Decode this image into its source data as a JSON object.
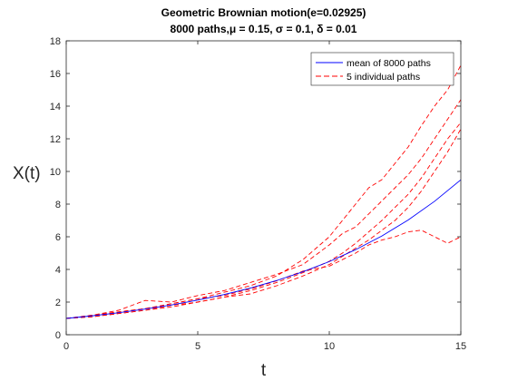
{
  "chart_data": {
    "type": "line",
    "title": [
      "Geometric Brownian motion(e=0.02925)",
      "8000 paths,μ = 0.15, σ = 0.1, δ = 0.01"
    ],
    "xlabel": "t",
    "ylabel": "X(t)",
    "xlim": [
      0,
      15
    ],
    "ylim": [
      0,
      18
    ],
    "xticks": [
      0,
      5,
      10,
      15
    ],
    "yticks": [
      0,
      2,
      4,
      6,
      8,
      10,
      12,
      14,
      16,
      18
    ],
    "grid": false,
    "legend_position": "top-right",
    "legend": [
      {
        "label": "mean of 8000 paths",
        "color": "#0000ff",
        "style": "solid"
      },
      {
        "label": "5 individual paths",
        "color": "#ff0000",
        "style": "dashed"
      }
    ],
    "series": [
      {
        "name": "mean of 8000 paths",
        "color": "#0000ff",
        "style": "solid",
        "x": [
          0,
          1,
          2,
          3,
          4,
          5,
          6,
          7,
          8,
          9,
          10,
          11,
          12,
          13,
          14,
          15
        ],
        "y": [
          1.0,
          1.16,
          1.35,
          1.57,
          1.82,
          2.12,
          2.46,
          2.86,
          3.32,
          3.86,
          4.48,
          5.21,
          6.05,
          7.03,
          8.17,
          9.49
        ]
      },
      {
        "color": "#ff0000",
        "style": "dashed",
        "x": [
          0,
          1,
          2,
          3,
          4,
          5,
          6,
          7,
          8,
          9,
          10,
          10.5,
          11,
          11.5,
          12,
          12.5,
          13,
          13.5,
          14,
          14.5,
          15
        ],
        "y": [
          1.0,
          1.2,
          1.4,
          1.6,
          1.9,
          2.2,
          2.6,
          3.0,
          3.6,
          4.6,
          6.0,
          7.0,
          8.0,
          9.0,
          9.5,
          10.5,
          11.5,
          12.8,
          14.0,
          15.0,
          16.5
        ]
      },
      {
        "color": "#ff0000",
        "style": "dashed",
        "x": [
          0,
          1,
          2,
          3,
          4,
          5,
          6,
          7,
          8,
          9,
          10,
          10.5,
          11,
          11.5,
          12,
          12.5,
          13,
          13.5,
          14,
          14.5,
          15
        ],
        "y": [
          1.0,
          1.2,
          1.5,
          2.1,
          2.0,
          2.4,
          2.7,
          3.2,
          3.7,
          4.3,
          5.5,
          6.2,
          6.6,
          7.4,
          8.2,
          9.0,
          9.8,
          10.8,
          12.0,
          13.2,
          14.4
        ]
      },
      {
        "color": "#ff0000",
        "style": "dashed",
        "x": [
          0,
          1,
          2,
          3,
          4,
          5,
          6,
          7,
          8,
          9,
          10,
          10.5,
          11,
          11.5,
          12,
          12.5,
          13,
          13.5,
          14,
          14.5,
          15
        ],
        "y": [
          1.0,
          1.1,
          1.3,
          1.5,
          1.7,
          2.0,
          2.3,
          2.7,
          3.2,
          3.8,
          4.5,
          5.0,
          5.6,
          6.3,
          7.0,
          7.8,
          8.6,
          9.6,
          10.8,
          12.0,
          13.0
        ]
      },
      {
        "color": "#ff0000",
        "style": "dashed",
        "x": [
          0,
          1,
          2,
          3,
          4,
          5,
          6,
          7,
          8,
          9,
          10,
          10.5,
          11,
          11.5,
          12,
          12.5,
          13,
          13.5,
          14,
          14.5,
          15
        ],
        "y": [
          1.0,
          1.2,
          1.4,
          1.6,
          1.9,
          2.2,
          2.4,
          2.8,
          3.3,
          3.9,
          4.2,
          4.6,
          5.0,
          5.5,
          5.8,
          6.0,
          6.3,
          6.4,
          6.0,
          5.6,
          6.0
        ]
      },
      {
        "color": "#ff0000",
        "style": "dashed",
        "x": [
          0,
          1,
          2,
          3,
          4,
          5,
          6,
          7,
          8,
          9,
          10,
          10.5,
          11,
          11.5,
          12,
          12.5,
          13,
          13.5,
          14,
          14.5,
          15
        ],
        "y": [
          1.0,
          1.1,
          1.3,
          1.5,
          1.8,
          2.0,
          2.3,
          2.5,
          3.0,
          3.6,
          4.3,
          4.8,
          5.3,
          5.8,
          6.4,
          7.0,
          7.8,
          8.8,
          10.0,
          11.2,
          12.6
        ]
      }
    ]
  }
}
